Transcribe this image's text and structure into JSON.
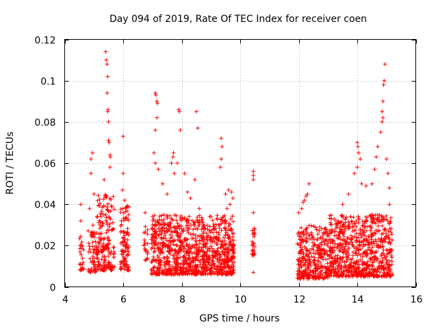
{
  "chart_data": {
    "type": "scatter",
    "title": "Day 094 of 2019, Rate Of TEC Index for receiver coen",
    "xlabel": "GPS time / hours",
    "ylabel": "ROTI / TECUs",
    "xlim": [
      4,
      16
    ],
    "ylim": [
      0,
      0.12
    ],
    "xticks": [
      4,
      6,
      8,
      10,
      12,
      14,
      16
    ],
    "xtick_labels": [
      "4",
      "6",
      "8",
      "10",
      "12",
      "14",
      "16"
    ],
    "yticks": [
      0,
      0.02,
      0.04,
      0.06,
      0.08,
      0.1,
      0.12
    ],
    "ytick_labels": [
      "0",
      "0.02",
      "0.04",
      "0.06",
      "0.08",
      "0.1",
      "0.12"
    ],
    "grid": true,
    "marker": "plus",
    "color": "#ff0000",
    "clusters": [
      {
        "x_range": [
          4.5,
          4.65
        ],
        "y_base": [
          0.008,
          0.025
        ],
        "n": 25,
        "peaks": [
          [
            4.55,
            0.04
          ],
          [
            4.55,
            0.032
          ]
        ]
      },
      {
        "x_range": [
          4.8,
          5.1
        ],
        "y_base": [
          0.007,
          0.03
        ],
        "n": 60,
        "peaks": [
          [
            4.9,
            0.062
          ],
          [
            4.95,
            0.065
          ],
          [
            4.9,
            0.055
          ],
          [
            5.0,
            0.045
          ],
          [
            4.85,
            0.038
          ]
        ]
      },
      {
        "x_range": [
          5.1,
          5.7
        ],
        "y_base": [
          0.008,
          0.045
        ],
        "n": 180,
        "peaks": [
          [
            5.4,
            0.114
          ],
          [
            5.42,
            0.11
          ],
          [
            5.45,
            0.108
          ],
          [
            5.47,
            0.102
          ],
          [
            5.45,
            0.094
          ],
          [
            5.48,
            0.086
          ],
          [
            5.47,
            0.085
          ],
          [
            5.5,
            0.08
          ],
          [
            5.5,
            0.071
          ],
          [
            5.52,
            0.07
          ],
          [
            5.55,
            0.064
          ],
          [
            5.56,
            0.063
          ],
          [
            5.55,
            0.058
          ],
          [
            5.35,
            0.052
          ]
        ]
      },
      {
        "x_range": [
          5.9,
          6.2
        ],
        "y_base": [
          0.008,
          0.04
        ],
        "n": 100,
        "peaks": [
          [
            6.0,
            0.073
          ],
          [
            6.0,
            0.055
          ],
          [
            5.98,
            0.047
          ],
          [
            6.05,
            0.042
          ]
        ]
      },
      {
        "x_range": [
          6.7,
          6.85
        ],
        "y_base": [
          0.012,
          0.03
        ],
        "n": 20,
        "peaks": [
          [
            6.75,
            0.036
          ]
        ]
      },
      {
        "x_range": [
          6.95,
          8.9
        ],
        "y_base": [
          0.006,
          0.035
        ],
        "n": 700,
        "peaks": [
          [
            7.1,
            0.094
          ],
          [
            7.12,
            0.093
          ],
          [
            7.15,
            0.09
          ],
          [
            7.17,
            0.089
          ],
          [
            7.15,
            0.082
          ],
          [
            7.1,
            0.076
          ],
          [
            7.05,
            0.065
          ],
          [
            7.1,
            0.06
          ],
          [
            7.2,
            0.057
          ],
          [
            7.35,
            0.05
          ],
          [
            7.5,
            0.045
          ],
          [
            7.65,
            0.06
          ],
          [
            7.7,
            0.063
          ],
          [
            7.72,
            0.065
          ],
          [
            7.9,
            0.086
          ],
          [
            7.92,
            0.085
          ],
          [
            7.95,
            0.076
          ],
          [
            7.85,
            0.06
          ],
          [
            7.75,
            0.055
          ],
          [
            8.1,
            0.055
          ],
          [
            8.2,
            0.046
          ],
          [
            8.5,
            0.085
          ],
          [
            8.55,
            0.077
          ],
          [
            8.45,
            0.052
          ],
          [
            8.3,
            0.043
          ],
          [
            8.6,
            0.038
          ]
        ]
      },
      {
        "x_range": [
          8.9,
          9.8
        ],
        "y_base": [
          0.006,
          0.035
        ],
        "n": 320,
        "peaks": [
          [
            9.35,
            0.072
          ],
          [
            9.38,
            0.068
          ],
          [
            9.35,
            0.062
          ],
          [
            9.32,
            0.058
          ],
          [
            9.5,
            0.045
          ],
          [
            9.6,
            0.047
          ],
          [
            9.7,
            0.046
          ],
          [
            9.75,
            0.043
          ],
          [
            9.65,
            0.04
          ],
          [
            9.55,
            0.038
          ]
        ]
      },
      {
        "x_range": [
          10.4,
          10.5
        ],
        "y_base": [
          0.015,
          0.03
        ],
        "n": 25,
        "peaks": [
          [
            10.45,
            0.056
          ],
          [
            10.45,
            0.054
          ],
          [
            10.45,
            0.052
          ],
          [
            10.45,
            0.036
          ],
          [
            10.45,
            0.007
          ]
        ]
      },
      {
        "x_range": [
          11.95,
          13.0
        ],
        "y_base": [
          0.004,
          0.03
        ],
        "n": 320,
        "peaks": [
          [
            12.35,
            0.05
          ],
          [
            12.3,
            0.045
          ],
          [
            12.25,
            0.044
          ],
          [
            12.2,
            0.042
          ],
          [
            12.15,
            0.041
          ],
          [
            12.1,
            0.038
          ],
          [
            12.0,
            0.036
          ]
        ]
      },
      {
        "x_range": [
          13.0,
          15.2
        ],
        "y_base": [
          0.005,
          0.035
        ],
        "n": 750,
        "peaks": [
          [
            13.5,
            0.04
          ],
          [
            13.7,
            0.045
          ],
          [
            13.9,
            0.055
          ],
          [
            14.0,
            0.07
          ],
          [
            14.02,
            0.068
          ],
          [
            14.05,
            0.065
          ],
          [
            14.1,
            0.062
          ],
          [
            14.0,
            0.058
          ],
          [
            14.15,
            0.05
          ],
          [
            14.3,
            0.049
          ],
          [
            14.5,
            0.05
          ],
          [
            14.6,
            0.057
          ],
          [
            14.65,
            0.063
          ],
          [
            14.7,
            0.068
          ],
          [
            14.8,
            0.075
          ],
          [
            14.85,
            0.08
          ],
          [
            14.88,
            0.082
          ],
          [
            14.85,
            0.085
          ],
          [
            14.88,
            0.09
          ],
          [
            14.9,
            0.098
          ],
          [
            14.92,
            0.1
          ],
          [
            14.95,
            0.108
          ],
          [
            15.0,
            0.062
          ],
          [
            15.05,
            0.055
          ],
          [
            15.1,
            0.048
          ],
          [
            15.1,
            0.04
          ]
        ]
      }
    ]
  }
}
